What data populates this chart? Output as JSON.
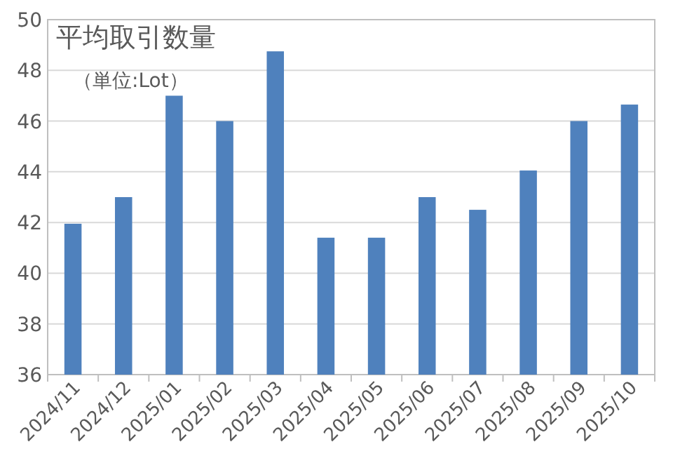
{
  "chart_data": {
    "type": "bar",
    "title": "平均取引数量",
    "subtitle": "（単位:Lot）",
    "categories": [
      "2024/11",
      "2024/12",
      "2025/01",
      "2025/02",
      "2025/03",
      "2025/04",
      "2025/05",
      "2025/06",
      "2025/07",
      "2025/08",
      "2025/09",
      "2025/10"
    ],
    "values": [
      41.95,
      43.0,
      47.0,
      46.0,
      48.75,
      41.4,
      41.4,
      43.0,
      42.5,
      44.05,
      46.0,
      46.65
    ],
    "color": "#4f81bd",
    "ylim": [
      36,
      50
    ],
    "yticks": [
      36,
      38,
      40,
      42,
      44,
      46,
      48,
      50
    ],
    "grid": "y"
  }
}
